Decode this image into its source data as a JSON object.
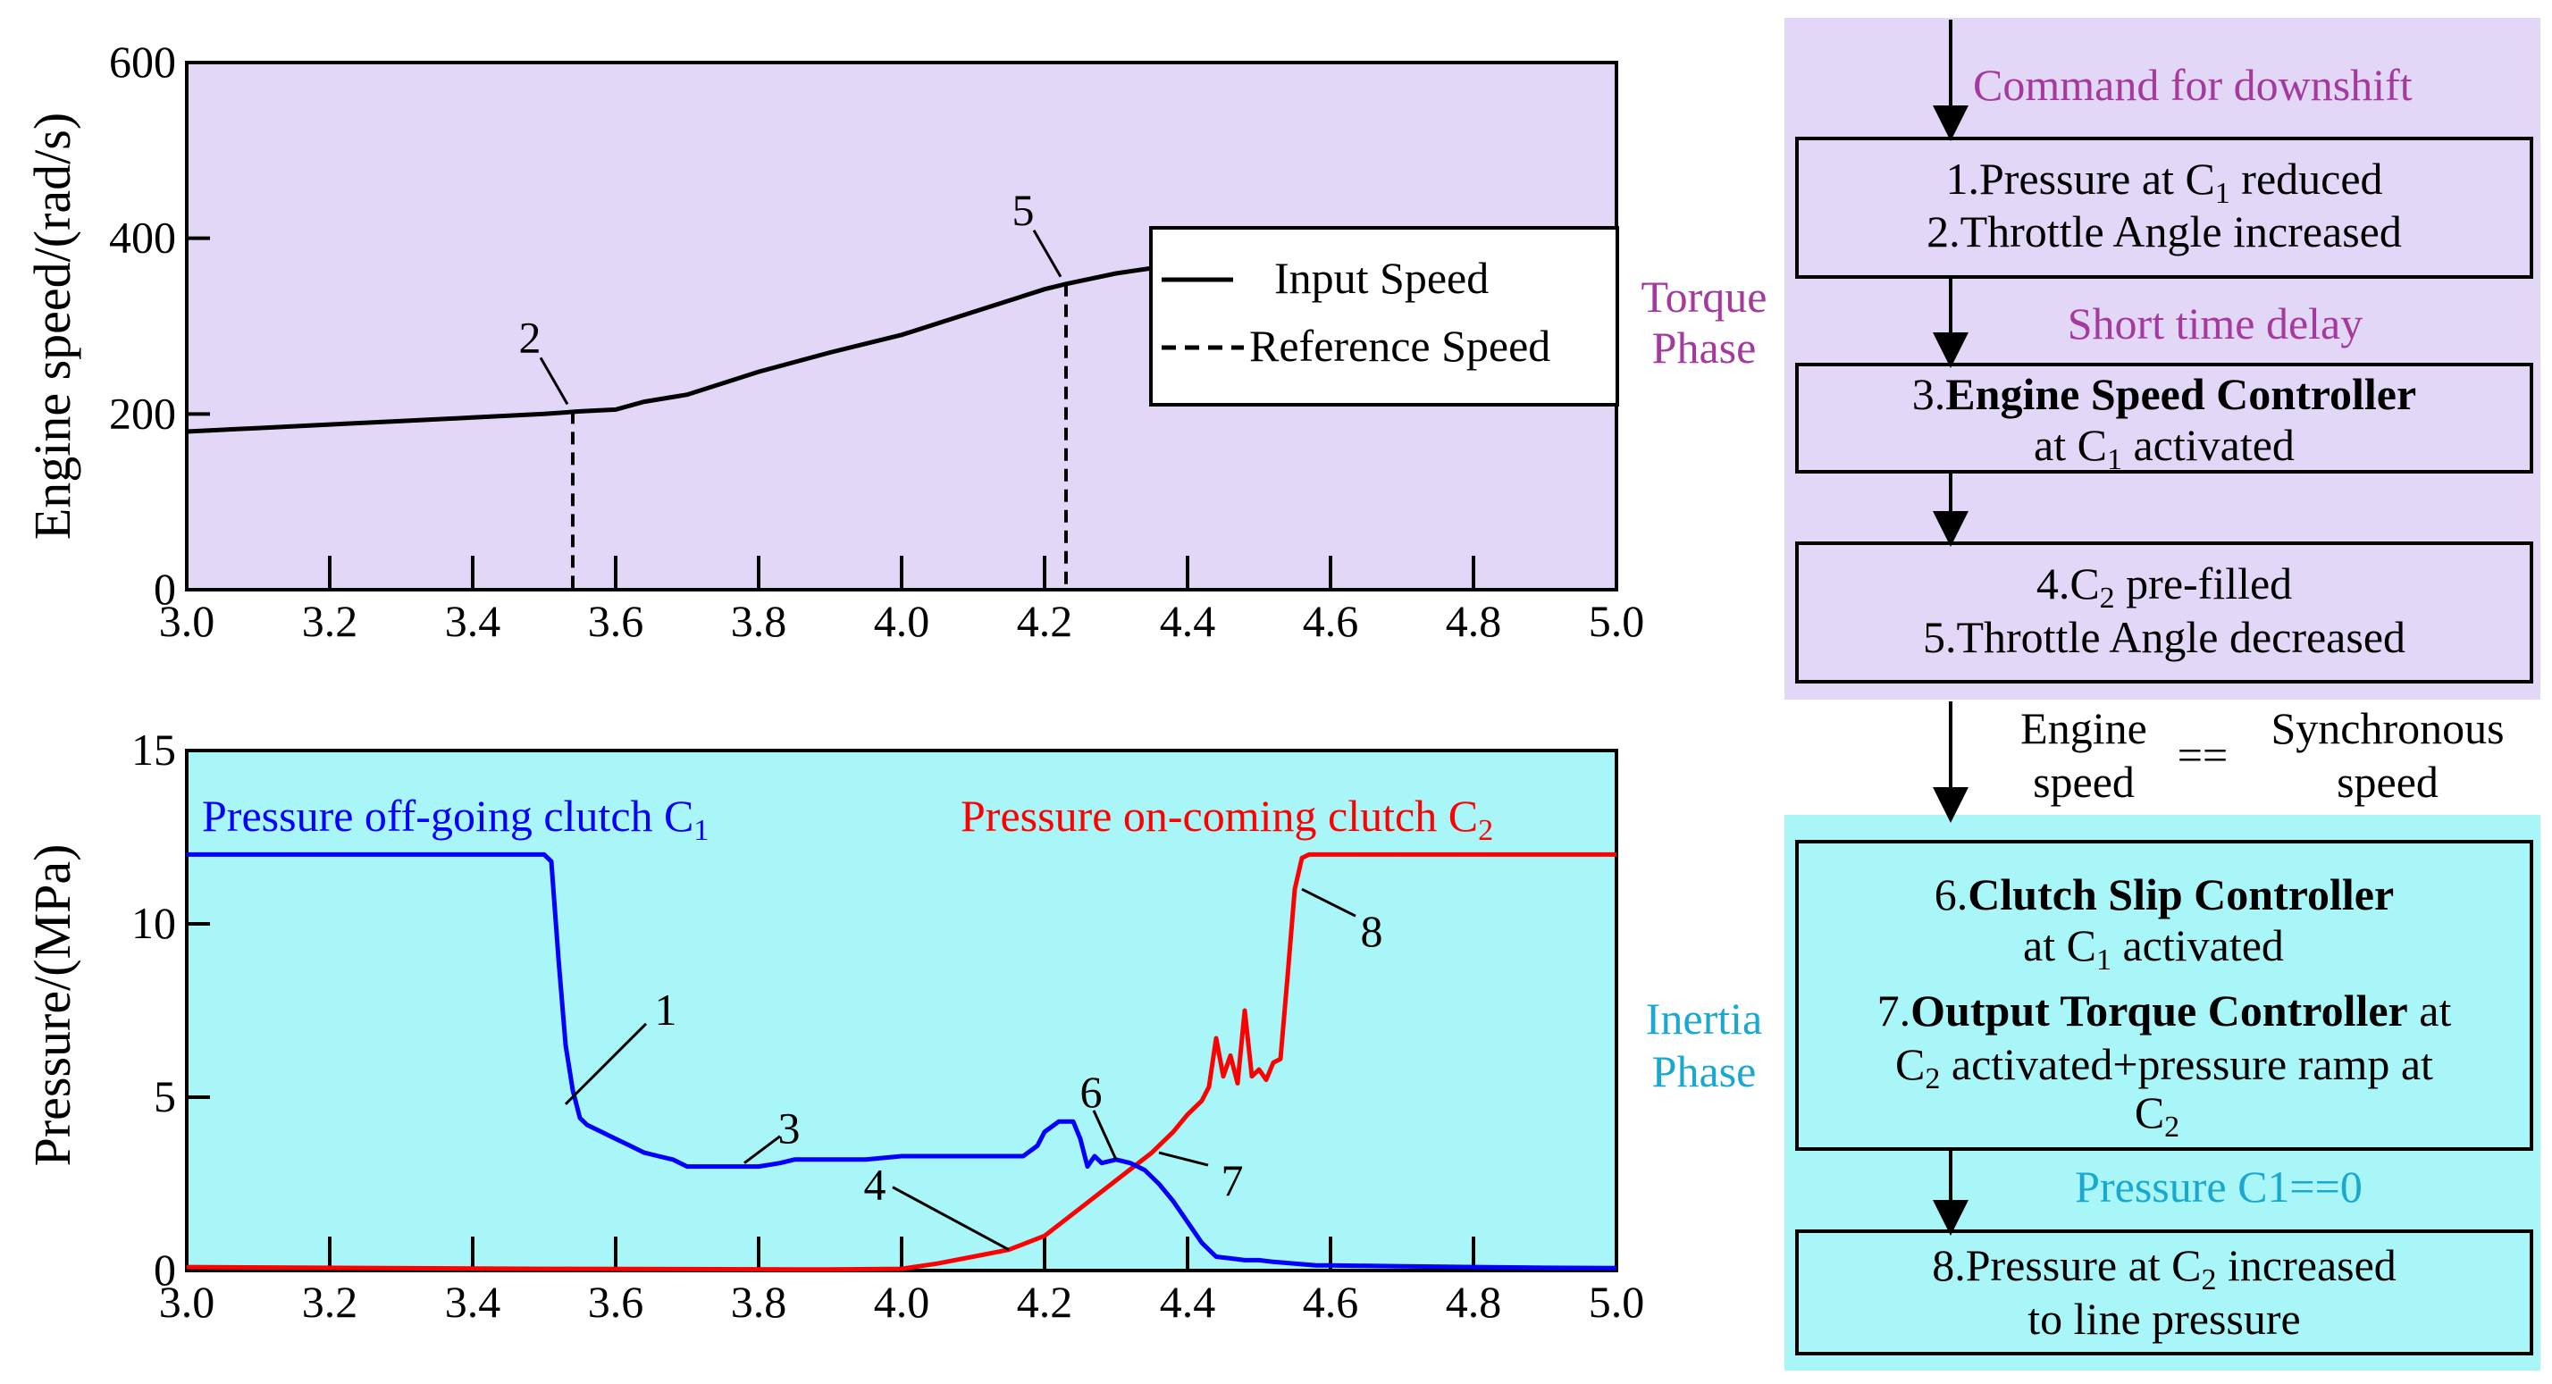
{
  "colors": {
    "torque_bg": "#e3d7f8",
    "inertia_bg": "#a9f6f9",
    "torque_label": "#a43a9e",
    "inertia_label": "#1aa7d0",
    "c1_line": "#0000ff",
    "c2_line": "#ff0000",
    "axis": "#000000"
  },
  "chart_data": [
    {
      "type": "line",
      "title": "",
      "ylabel": "Engine speed/(rad/s)",
      "xlabel": "",
      "xlim": [
        3.0,
        5.0
      ],
      "ylim": [
        0,
        600
      ],
      "xticks": [
        "3.0",
        "3.2",
        "3.4",
        "3.6",
        "3.8",
        "4.0",
        "4.2",
        "4.4",
        "4.6",
        "4.8",
        "5.0"
      ],
      "yticks": [
        "0",
        "200",
        "400",
        "600"
      ],
      "grid": false,
      "legend_position": "top-right",
      "legend": [
        "Input Speed",
        "Reference Speed"
      ],
      "series": [
        {
          "name": "Input Speed",
          "style": "solid",
          "x": [
            3.0,
            3.1,
            3.2,
            3.3,
            3.4,
            3.5,
            3.55,
            3.6,
            3.64,
            3.7,
            3.8,
            3.9,
            4.0,
            4.1,
            4.2,
            4.23,
            4.3,
            4.35
          ],
          "y": [
            180,
            184,
            188,
            192,
            196,
            200,
            203,
            205,
            214,
            222,
            248,
            270,
            290,
            316,
            342,
            348,
            360,
            366
          ]
        }
      ],
      "reference_markers": [
        {
          "label": "2",
          "x": 3.54,
          "y": 203
        },
        {
          "label": "5",
          "x": 4.23,
          "y": 348
        }
      ]
    },
    {
      "type": "line",
      "title": "",
      "ylabel": "Pressure/(MPa)",
      "xlabel": "",
      "xlim": [
        3.0,
        5.0
      ],
      "ylim": [
        0,
        15
      ],
      "xticks": [
        "3.0",
        "3.2",
        "3.4",
        "3.6",
        "3.8",
        "4.0",
        "4.2",
        "4.4",
        "4.6",
        "4.8",
        "5.0"
      ],
      "yticks": [
        "0",
        "5",
        "10",
        "15"
      ],
      "grid": false,
      "series": [
        {
          "name": "Pressure off-going clutch C1",
          "color": "#0000ff",
          "x": [
            3.0,
            3.5,
            3.51,
            3.52,
            3.53,
            3.54,
            3.55,
            3.56,
            3.58,
            3.6,
            3.62,
            3.64,
            3.66,
            3.68,
            3.7,
            3.75,
            3.8,
            3.83,
            3.85,
            3.9,
            3.95,
            4.0,
            4.05,
            4.1,
            4.15,
            4.17,
            4.19,
            4.2,
            4.22,
            4.24,
            4.25,
            4.26,
            4.27,
            4.28,
            4.3,
            4.32,
            4.34,
            4.36,
            4.38,
            4.4,
            4.42,
            4.44,
            4.46,
            4.48,
            4.5,
            4.52,
            4.55,
            4.58,
            4.6,
            4.7,
            4.8,
            4.9,
            5.0
          ],
          "y": [
            12.0,
            12.0,
            11.8,
            9.0,
            6.5,
            5.2,
            4.4,
            4.2,
            4.0,
            3.8,
            3.6,
            3.4,
            3.3,
            3.2,
            3.0,
            3.0,
            3.0,
            3.1,
            3.2,
            3.2,
            3.2,
            3.3,
            3.3,
            3.3,
            3.3,
            3.3,
            3.6,
            4.0,
            4.3,
            4.3,
            3.8,
            3.0,
            3.3,
            3.1,
            3.2,
            3.1,
            2.9,
            2.5,
            2.0,
            1.4,
            0.8,
            0.4,
            0.35,
            0.3,
            0.3,
            0.25,
            0.2,
            0.15,
            0.15,
            0.12,
            0.1,
            0.08,
            0.07
          ]
        },
        {
          "name": "Pressure on-coming clutch C2",
          "color": "#ff0000",
          "x": [
            3.0,
            3.5,
            3.9,
            4.0,
            4.05,
            4.1,
            4.15,
            4.2,
            4.25,
            4.3,
            4.35,
            4.38,
            4.4,
            4.42,
            4.43,
            4.44,
            4.45,
            4.46,
            4.47,
            4.48,
            4.49,
            4.5,
            4.51,
            4.52,
            4.53,
            4.54,
            4.55,
            4.56,
            4.57,
            4.6,
            4.7,
            4.8,
            5.0
          ],
          "y": [
            0.1,
            0.05,
            0.03,
            0.05,
            0.2,
            0.4,
            0.6,
            1.0,
            1.8,
            2.6,
            3.4,
            4.0,
            4.5,
            4.9,
            5.3,
            6.7,
            5.6,
            6.2,
            5.4,
            7.5,
            5.6,
            5.8,
            5.5,
            6.0,
            6.1,
            8.5,
            11.0,
            11.9,
            12.0,
            12.0,
            12.0,
            12.0,
            12.0
          ]
        }
      ],
      "series_labels": [
        {
          "text": "Pressure off-going clutch C",
          "sub": "1"
        },
        {
          "text": "Pressure on-coming clutch C",
          "sub": "2"
        }
      ],
      "annotations": [
        {
          "label": "1",
          "x": 3.53,
          "y": 4.8
        },
        {
          "label": "3",
          "x": 3.78,
          "y": 3.1
        },
        {
          "label": "4",
          "x": 4.15,
          "y": 0.6
        },
        {
          "label": "6",
          "x": 4.3,
          "y": 3.2
        },
        {
          "label": "7",
          "x": 4.36,
          "y": 3.4
        },
        {
          "label": "8",
          "x": 4.56,
          "y": 11.0
        }
      ]
    }
  ],
  "phases": {
    "torque": [
      "Torque",
      "Phase"
    ],
    "inertia": [
      "Inertia",
      "Phase"
    ]
  },
  "flowchart": {
    "command": "Command for downshift",
    "step1": {
      "pre": "1.Pressure at C",
      "sub": "1",
      "post": " reduced"
    },
    "step2": "2.Throttle Angle increased",
    "short_delay": "Short time delay",
    "step3_num": "3.",
    "step3_bold": "Engine Speed Controller",
    "step3_line2": {
      "pre": "at C",
      "sub": "1",
      "post": " activated"
    },
    "step4": {
      "pre": "4.C",
      "sub": "2",
      "post": " pre-filled"
    },
    "step5": "5.Throttle Angle decreased",
    "cond_left": [
      "Engine",
      "speed"
    ],
    "cond_op": "==",
    "cond_right": [
      "Synchronous",
      "speed"
    ],
    "step6_num": "6.",
    "step6_bold": "Clutch Slip Controller",
    "step6_line2": {
      "pre": "at C",
      "sub": "1",
      "post": " activated"
    },
    "step7_num": "7.",
    "step7_bold": "Output Torque Controller",
    "step7_tail": " at",
    "step7_line2": {
      "pre": "C",
      "sub": "2",
      "post": " activated+pressure ramp at"
    },
    "step7_line3": {
      "pre": "C",
      "sub": "2",
      "post": ""
    },
    "pressure_zero": "Pressure C1==0",
    "step8_line1": {
      "pre": "8.Pressure at C",
      "sub": "2",
      "post": " increased"
    },
    "step8_line2": "to line pressure"
  }
}
